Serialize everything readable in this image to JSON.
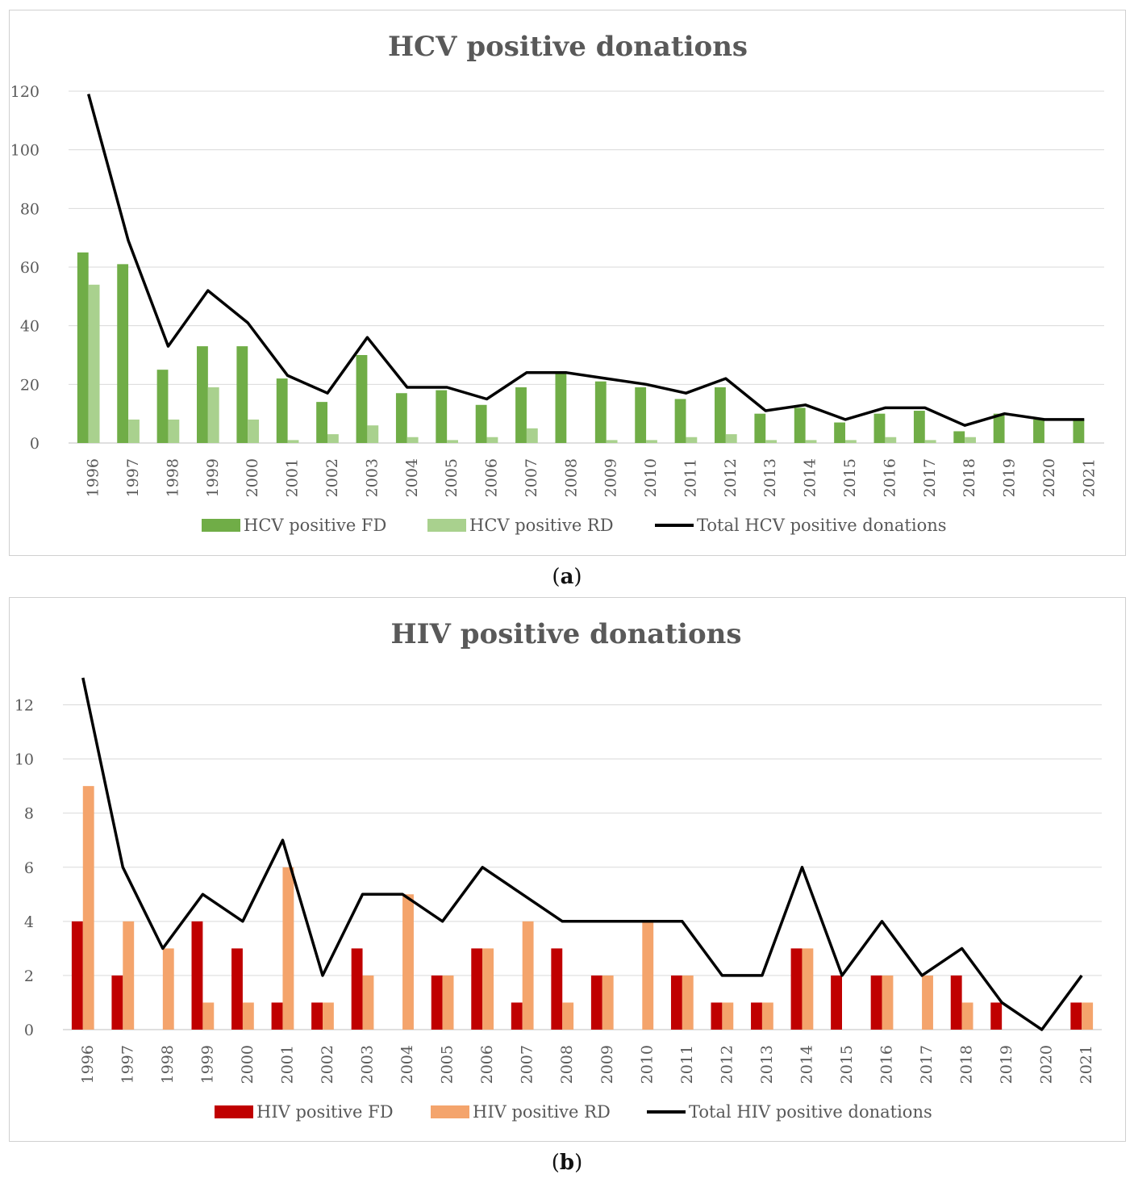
{
  "chart_data": [
    {
      "type": "bar",
      "title": "HCV positive donations",
      "categories": [
        "1996",
        "1997",
        "1998",
        "1999",
        "2000",
        "2001",
        "2002",
        "2003",
        "2004",
        "2005",
        "2006",
        "2007",
        "2008",
        "2009",
        "2010",
        "2011",
        "2012",
        "2013",
        "2014",
        "2015",
        "2016",
        "2017",
        "2018",
        "2019",
        "2020",
        "2021"
      ],
      "ylim": [
        0,
        120
      ],
      "yticks": [
        0,
        20,
        40,
        60,
        80,
        100,
        120
      ],
      "series": [
        {
          "name": "HCV positive FD",
          "kind": "bar",
          "color": "#70ad47",
          "values": [
            65,
            61,
            25,
            33,
            33,
            22,
            14,
            30,
            17,
            18,
            13,
            19,
            24,
            21,
            19,
            15,
            19,
            10,
            12,
            7,
            10,
            11,
            4,
            10,
            8,
            8
          ]
        },
        {
          "name": "HCV positive RD",
          "kind": "bar",
          "color": "#a9d18e",
          "values": [
            54,
            8,
            8,
            19,
            8,
            1,
            3,
            6,
            2,
            1,
            2,
            5,
            0,
            1,
            1,
            2,
            3,
            1,
            1,
            1,
            2,
            1,
            2,
            0,
            0,
            0
          ]
        },
        {
          "name": "Total HCV positive donations",
          "kind": "line",
          "color": "#000000",
          "values": [
            119,
            69,
            33,
            52,
            41,
            23,
            17,
            36,
            19,
            19,
            15,
            24,
            24,
            22,
            20,
            17,
            22,
            11,
            13,
            8,
            12,
            12,
            6,
            10,
            8,
            8
          ]
        }
      ]
    },
    {
      "type": "bar",
      "title": "HIV positive donations",
      "categories": [
        "1996",
        "1997",
        "1998",
        "1999",
        "2000",
        "2001",
        "2002",
        "2003",
        "2004",
        "2005",
        "2006",
        "2007",
        "2008",
        "2009",
        "2010",
        "2011",
        "2012",
        "2013",
        "2014",
        "2015",
        "2016",
        "2017",
        "2018",
        "2019",
        "2020",
        "2021"
      ],
      "ylim": [
        0,
        13
      ],
      "yticks": [
        0,
        2,
        4,
        6,
        8,
        10,
        12
      ],
      "series": [
        {
          "name": "HIV positive FD",
          "kind": "bar",
          "color": "#c00000",
          "values": [
            4,
            2,
            0,
            4,
            3,
            1,
            1,
            3,
            0,
            2,
            3,
            1,
            3,
            2,
            0,
            2,
            1,
            1,
            3,
            2,
            2,
            0,
            2,
            1,
            0,
            1
          ]
        },
        {
          "name": "HIV positive RD",
          "kind": "bar",
          "color": "#f4a46c",
          "values": [
            9,
            4,
            3,
            1,
            1,
            6,
            1,
            2,
            5,
            2,
            3,
            4,
            1,
            2,
            4,
            2,
            1,
            1,
            3,
            0,
            2,
            2,
            1,
            0,
            0,
            1
          ]
        },
        {
          "name": "Total HIV positive donations",
          "kind": "line",
          "color": "#000000",
          "values": [
            13,
            6,
            3,
            5,
            4,
            7,
            2,
            5,
            5,
            4,
            6,
            5,
            4,
            4,
            4,
            4,
            2,
            2,
            6,
            2,
            4,
            2,
            3,
            1,
            0,
            2
          ]
        }
      ]
    }
  ],
  "captions": [
    {
      "open": "(",
      "letter": "a",
      "close": ")"
    },
    {
      "open": "(",
      "letter": "b",
      "close": ")"
    }
  ]
}
